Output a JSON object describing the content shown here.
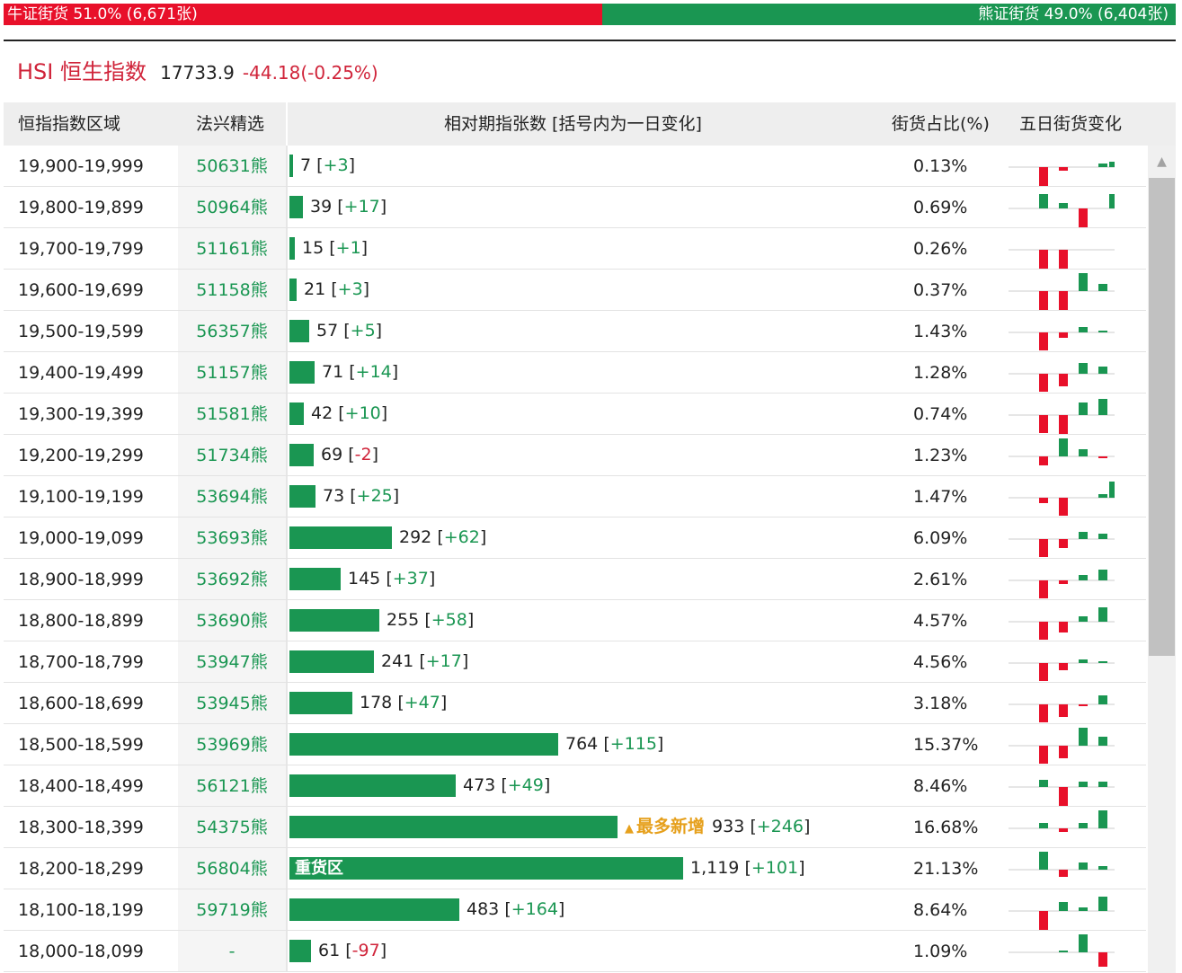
{
  "ratio": {
    "bull_text": "牛证街货 51.0% (6,671张)",
    "bear_text": "熊证街货 49.0% (6,404张)",
    "bull_pct": 51.0
  },
  "index": {
    "name": "HSI 恒生指数",
    "value": "17733.9",
    "change": "-44.18(-0.25%)"
  },
  "header": {
    "range": "恒指指数区域",
    "pick": "法兴精选",
    "count": "相对期指张数 [括号内为一日变化]",
    "share": "街货占比(%)",
    "trend": "五日街货变化"
  },
  "colors": {
    "up": "#1a9652",
    "down": "#e8102a",
    "highlight": "#e6a01c"
  },
  "max_count": 1119,
  "rows": [
    {
      "range": "19,900-19,999",
      "pick": "50631熊",
      "count": 7,
      "count_text": "7",
      "change": "+3",
      "share": "0.13%",
      "trend": [
        -24,
        -4,
        0,
        4,
        6
      ]
    },
    {
      "range": "19,800-19,899",
      "pick": "50964熊",
      "count": 39,
      "count_text": "39",
      "change": "+17",
      "share": "0.69%",
      "trend": [
        16,
        6,
        -22,
        0,
        16
      ]
    },
    {
      "range": "19,700-19,799",
      "pick": "51161熊",
      "count": 15,
      "count_text": "15",
      "change": "+1",
      "share": "0.26%",
      "trend": [
        -22,
        -22,
        0,
        0,
        0
      ]
    },
    {
      "range": "19,600-19,699",
      "pick": "51158熊",
      "count": 21,
      "count_text": "21",
      "change": "+3",
      "share": "0.37%",
      "trend": [
        -22,
        -22,
        20,
        8,
        0
      ]
    },
    {
      "range": "19,500-19,599",
      "pick": "56357熊",
      "count": 57,
      "count_text": "57",
      "change": "+5",
      "share": "1.43%",
      "trend": [
        -20,
        -6,
        6,
        2,
        0
      ]
    },
    {
      "range": "19,400-19,499",
      "pick": "51157熊",
      "count": 71,
      "count_text": "71",
      "change": "+14",
      "share": "1.28%",
      "trend": [
        -20,
        -14,
        12,
        8,
        0
      ]
    },
    {
      "range": "19,300-19,399",
      "pick": "51581熊",
      "count": 42,
      "count_text": "42",
      "change": "+10",
      "share": "0.74%",
      "trend": [
        -20,
        -22,
        14,
        18,
        0
      ]
    },
    {
      "range": "19,200-19,299",
      "pick": "51734熊",
      "count": 69,
      "count_text": "69",
      "change": "-2",
      "share": "1.23%",
      "trend": [
        -10,
        20,
        8,
        -2,
        0
      ]
    },
    {
      "range": "19,100-19,199",
      "pick": "53694熊",
      "count": 73,
      "count_text": "73",
      "change": "+25",
      "share": "1.47%",
      "trend": [
        -6,
        -20,
        0,
        4,
        18
      ]
    },
    {
      "range": "19,000-19,099",
      "pick": "53693熊",
      "count": 292,
      "count_text": "292",
      "change": "+62",
      "share": "6.09%",
      "trend": [
        -20,
        -10,
        8,
        6,
        0
      ]
    },
    {
      "range": "18,900-18,999",
      "pick": "53692熊",
      "count": 145,
      "count_text": "145",
      "change": "+37",
      "share": "2.61%",
      "trend": [
        -20,
        -4,
        6,
        12,
        0
      ]
    },
    {
      "range": "18,800-18,899",
      "pick": "53690熊",
      "count": 255,
      "count_text": "255",
      "change": "+58",
      "share": "4.57%",
      "trend": [
        -20,
        -12,
        6,
        16,
        0
      ]
    },
    {
      "range": "18,700-18,799",
      "pick": "53947熊",
      "count": 241,
      "count_text": "241",
      "change": "+17",
      "share": "4.56%",
      "trend": [
        -20,
        -8,
        4,
        2,
        0
      ]
    },
    {
      "range": "18,600-18,699",
      "pick": "53945熊",
      "count": 178,
      "count_text": "178",
      "change": "+47",
      "share": "3.18%",
      "trend": [
        -20,
        -14,
        -2,
        10,
        0
      ]
    },
    {
      "range": "18,500-18,599",
      "pick": "53969熊",
      "count": 764,
      "count_text": "764",
      "change": "+115",
      "share": "15.37%",
      "trend": [
        -20,
        -14,
        20,
        10,
        0
      ]
    },
    {
      "range": "18,400-18,499",
      "pick": "56121熊",
      "count": 473,
      "count_text": "473",
      "change": "+49",
      "share": "8.46%",
      "trend": [
        8,
        -22,
        6,
        6,
        0
      ]
    },
    {
      "range": "18,300-18,399",
      "pick": "54375熊",
      "count": 933,
      "count_text": "933",
      "change": "+246",
      "share": "16.68%",
      "tag": "最多新增",
      "trend": [
        6,
        -4,
        6,
        20,
        0
      ]
    },
    {
      "range": "18,200-18,299",
      "pick": "56804熊",
      "count": 1119,
      "count_text": "1,119",
      "change": "+101",
      "share": "21.13%",
      "bar_text": "重货区",
      "trend": [
        20,
        -8,
        8,
        4,
        0
      ]
    },
    {
      "range": "18,100-18,199",
      "pick": "59719熊",
      "count": 483,
      "count_text": "483",
      "change": "+164",
      "share": "8.64%",
      "trend": [
        -22,
        10,
        4,
        16,
        0
      ]
    },
    {
      "range": "18,000-18,099",
      "pick": "-",
      "count": 61,
      "count_text": "61",
      "change": "-97",
      "share": "1.09%",
      "trend": [
        0,
        2,
        20,
        -16,
        0
      ]
    }
  ]
}
